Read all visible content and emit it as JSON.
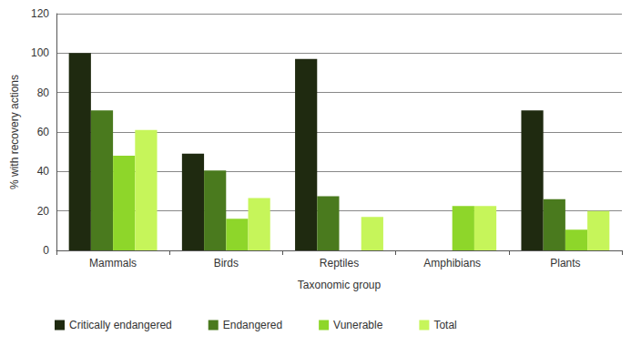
{
  "chart_data": {
    "type": "bar",
    "x_label": "Taxonomic group",
    "y_label": "% with recovery actions",
    "categories": [
      "Mammals",
      "Birds",
      "Reptiles",
      "Amphibians",
      "Plants"
    ],
    "series": [
      {
        "name": "Critically endangered",
        "color": "#1f2a10",
        "values": [
          100,
          49,
          97,
          null,
          71
        ]
      },
      {
        "name": "Endangered",
        "color": "#4a7a1e",
        "values": [
          71,
          40.5,
          27.5,
          null,
          26
        ]
      },
      {
        "name": "Vunerable",
        "color": "#8ed62a",
        "values": [
          48,
          16,
          null,
          22.5,
          10.5
        ]
      },
      {
        "name": "Total",
        "color": "#c6f55a",
        "values": [
          61,
          26.5,
          17,
          22.5,
          20
        ]
      }
    ],
    "ylim": [
      0,
      120
    ],
    "yticks": [
      0,
      20,
      40,
      60,
      80,
      100,
      120
    ],
    "grid": true,
    "legend": "bottom"
  }
}
